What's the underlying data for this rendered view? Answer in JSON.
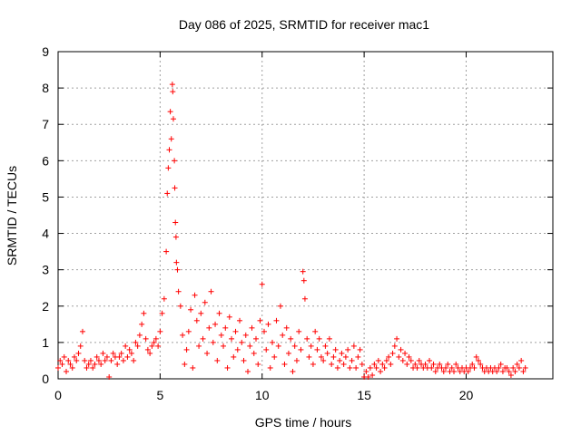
{
  "chart_data": {
    "type": "scatter",
    "title": "Day 086 of 2025, SRMTID for receiver mac1",
    "xlabel": "GPS time / hours",
    "ylabel": "SRMTID / TECUs",
    "xlim": [
      0,
      24.25
    ],
    "ylim": [
      0,
      9
    ],
    "xticks": [
      0,
      5,
      10,
      15,
      20
    ],
    "yticks": [
      0,
      1,
      2,
      3,
      4,
      5,
      6,
      7,
      8,
      9
    ],
    "grid": true,
    "marker": "+",
    "color": "#ff0000",
    "series": [
      {
        "name": "SRMTID",
        "points": [
          [
            0.0,
            0.3
          ],
          [
            0.1,
            0.5
          ],
          [
            0.2,
            0.4
          ],
          [
            0.3,
            0.6
          ],
          [
            0.4,
            0.2
          ],
          [
            0.5,
            0.5
          ],
          [
            0.6,
            0.4
          ],
          [
            0.7,
            0.3
          ],
          [
            0.8,
            0.6
          ],
          [
            0.9,
            0.5
          ],
          [
            1.0,
            0.7
          ],
          [
            1.1,
            0.9
          ],
          [
            1.2,
            1.3
          ],
          [
            1.3,
            0.5
          ],
          [
            1.4,
            0.3
          ],
          [
            1.5,
            0.4
          ],
          [
            1.6,
            0.5
          ],
          [
            1.7,
            0.3
          ],
          [
            1.8,
            0.4
          ],
          [
            1.9,
            0.6
          ],
          [
            2.0,
            0.5
          ],
          [
            2.1,
            0.4
          ],
          [
            2.2,
            0.7
          ],
          [
            2.3,
            0.5
          ],
          [
            2.4,
            0.6
          ],
          [
            2.5,
            0.05
          ],
          [
            2.6,
            0.5
          ],
          [
            2.7,
            0.7
          ],
          [
            2.8,
            0.6
          ],
          [
            2.9,
            0.4
          ],
          [
            3.0,
            0.6
          ],
          [
            3.1,
            0.7
          ],
          [
            3.2,
            0.5
          ],
          [
            3.3,
            0.9
          ],
          [
            3.4,
            0.6
          ],
          [
            3.5,
            0.8
          ],
          [
            3.6,
            0.7
          ],
          [
            3.7,
            0.5
          ],
          [
            3.8,
            1.0
          ],
          [
            3.9,
            0.9
          ],
          [
            4.0,
            1.2
          ],
          [
            4.1,
            1.5
          ],
          [
            4.2,
            1.8
          ],
          [
            4.3,
            1.1
          ],
          [
            4.4,
            0.8
          ],
          [
            4.5,
            0.7
          ],
          [
            4.6,
            0.9
          ],
          [
            4.7,
            1.0
          ],
          [
            4.8,
            1.1
          ],
          [
            4.9,
            0.9
          ],
          [
            5.0,
            1.3
          ],
          [
            5.1,
            1.8
          ],
          [
            5.2,
            2.2
          ],
          [
            5.3,
            3.5
          ],
          [
            5.35,
            5.1
          ],
          [
            5.4,
            5.8
          ],
          [
            5.45,
            6.3
          ],
          [
            5.5,
            7.35
          ],
          [
            5.55,
            6.6
          ],
          [
            5.6,
            8.1
          ],
          [
            5.62,
            7.9
          ],
          [
            5.65,
            7.15
          ],
          [
            5.7,
            6.0
          ],
          [
            5.72,
            5.25
          ],
          [
            5.75,
            4.3
          ],
          [
            5.78,
            3.9
          ],
          [
            5.8,
            3.2
          ],
          [
            5.85,
            3.0
          ],
          [
            5.9,
            2.4
          ],
          [
            6.0,
            2.0
          ],
          [
            6.1,
            1.2
          ],
          [
            6.2,
            0.4
          ],
          [
            6.3,
            0.8
          ],
          [
            6.4,
            1.3
          ],
          [
            6.5,
            1.9
          ],
          [
            6.6,
            0.3
          ],
          [
            6.7,
            2.3
          ],
          [
            6.8,
            1.6
          ],
          [
            6.9,
            0.9
          ],
          [
            7.0,
            1.8
          ],
          [
            7.1,
            1.1
          ],
          [
            7.2,
            2.1
          ],
          [
            7.3,
            0.7
          ],
          [
            7.4,
            1.4
          ],
          [
            7.5,
            2.4
          ],
          [
            7.6,
            1.0
          ],
          [
            7.7,
            1.5
          ],
          [
            7.8,
            0.5
          ],
          [
            7.9,
            1.8
          ],
          [
            8.0,
            1.2
          ],
          [
            8.1,
            0.9
          ],
          [
            8.2,
            1.4
          ],
          [
            8.3,
            0.3
          ],
          [
            8.4,
            1.7
          ],
          [
            8.5,
            1.1
          ],
          [
            8.6,
            0.6
          ],
          [
            8.7,
            1.3
          ],
          [
            8.8,
            0.8
          ],
          [
            8.9,
            1.6
          ],
          [
            9.0,
            1.0
          ],
          [
            9.1,
            0.5
          ],
          [
            9.2,
            1.2
          ],
          [
            9.3,
            0.2
          ],
          [
            9.4,
            0.9
          ],
          [
            9.5,
            1.4
          ],
          [
            9.6,
            0.7
          ],
          [
            9.7,
            1.1
          ],
          [
            9.8,
            0.4
          ],
          [
            9.9,
            1.6
          ],
          [
            10.0,
            2.6
          ],
          [
            10.1,
            1.3
          ],
          [
            10.2,
            0.8
          ],
          [
            10.3,
            1.5
          ],
          [
            10.4,
            0.3
          ],
          [
            10.5,
            1.0
          ],
          [
            10.6,
            0.6
          ],
          [
            10.7,
            1.6
          ],
          [
            10.8,
            0.9
          ],
          [
            10.9,
            2.0
          ],
          [
            11.0,
            1.2
          ],
          [
            11.1,
            0.4
          ],
          [
            11.2,
            1.4
          ],
          [
            11.3,
            0.7
          ],
          [
            11.4,
            1.1
          ],
          [
            11.5,
            0.2
          ],
          [
            11.6,
            0.9
          ],
          [
            11.7,
            0.5
          ],
          [
            11.8,
            1.3
          ],
          [
            11.9,
            0.8
          ],
          [
            12.0,
            2.95
          ],
          [
            12.05,
            2.7
          ],
          [
            12.1,
            2.2
          ],
          [
            12.2,
            1.1
          ],
          [
            12.3,
            0.6
          ],
          [
            12.4,
            0.9
          ],
          [
            12.5,
            0.4
          ],
          [
            12.6,
            1.3
          ],
          [
            12.7,
            0.8
          ],
          [
            12.8,
            1.1
          ],
          [
            12.9,
            0.6
          ],
          [
            13.0,
            0.5
          ],
          [
            13.1,
            0.9
          ],
          [
            13.2,
            0.7
          ],
          [
            13.3,
            1.1
          ],
          [
            13.4,
            0.4
          ],
          [
            13.5,
            0.6
          ],
          [
            13.6,
            0.8
          ],
          [
            13.7,
            0.3
          ],
          [
            13.8,
            0.5
          ],
          [
            13.9,
            0.7
          ],
          [
            14.0,
            0.4
          ],
          [
            14.1,
            0.6
          ],
          [
            14.2,
            0.8
          ],
          [
            14.3,
            0.3
          ],
          [
            14.4,
            0.5
          ],
          [
            14.5,
            0.9
          ],
          [
            14.6,
            0.3
          ],
          [
            14.7,
            0.6
          ],
          [
            14.8,
            0.8
          ],
          [
            14.9,
            0.4
          ],
          [
            15.0,
            0.05
          ],
          [
            15.1,
            0.2
          ],
          [
            15.2,
            0.05
          ],
          [
            15.3,
            0.3
          ],
          [
            15.4,
            0.1
          ],
          [
            15.5,
            0.4
          ],
          [
            15.6,
            0.3
          ],
          [
            15.7,
            0.5
          ],
          [
            15.8,
            0.2
          ],
          [
            15.9,
            0.4
          ],
          [
            16.0,
            0.3
          ],
          [
            16.1,
            0.5
          ],
          [
            16.2,
            0.6
          ],
          [
            16.3,
            0.4
          ],
          [
            16.4,
            0.7
          ],
          [
            16.5,
            0.9
          ],
          [
            16.6,
            1.1
          ],
          [
            16.7,
            0.6
          ],
          [
            16.8,
            0.8
          ],
          [
            16.9,
            0.5
          ],
          [
            17.0,
            0.7
          ],
          [
            17.1,
            0.4
          ],
          [
            17.2,
            0.6
          ],
          [
            17.3,
            0.5
          ],
          [
            17.4,
            0.3
          ],
          [
            17.5,
            0.4
          ],
          [
            17.6,
            0.3
          ],
          [
            17.7,
            0.5
          ],
          [
            17.8,
            0.4
          ],
          [
            17.9,
            0.3
          ],
          [
            18.0,
            0.4
          ],
          [
            18.1,
            0.3
          ],
          [
            18.2,
            0.5
          ],
          [
            18.3,
            0.3
          ],
          [
            18.4,
            0.4
          ],
          [
            18.5,
            0.2
          ],
          [
            18.6,
            0.3
          ],
          [
            18.7,
            0.4
          ],
          [
            18.8,
            0.3
          ],
          [
            18.9,
            0.2
          ],
          [
            19.0,
            0.3
          ],
          [
            19.1,
            0.4
          ],
          [
            19.2,
            0.2
          ],
          [
            19.3,
            0.3
          ],
          [
            19.4,
            0.2
          ],
          [
            19.5,
            0.4
          ],
          [
            19.6,
            0.3
          ],
          [
            19.7,
            0.2
          ],
          [
            19.8,
            0.3
          ],
          [
            19.9,
            0.2
          ],
          [
            20.0,
            0.3
          ],
          [
            20.1,
            0.2
          ],
          [
            20.2,
            0.3
          ],
          [
            20.3,
            0.4
          ],
          [
            20.4,
            0.3
          ],
          [
            20.5,
            0.6
          ],
          [
            20.6,
            0.5
          ],
          [
            20.7,
            0.4
          ],
          [
            20.8,
            0.3
          ],
          [
            20.9,
            0.2
          ],
          [
            21.0,
            0.3
          ],
          [
            21.1,
            0.2
          ],
          [
            21.2,
            0.3
          ],
          [
            21.3,
            0.2
          ],
          [
            21.4,
            0.3
          ],
          [
            21.5,
            0.2
          ],
          [
            21.6,
            0.3
          ],
          [
            21.7,
            0.4
          ],
          [
            21.8,
            0.2
          ],
          [
            21.9,
            0.3
          ],
          [
            22.0,
            0.3
          ],
          [
            22.1,
            0.2
          ],
          [
            22.2,
            0.1
          ],
          [
            22.3,
            0.3
          ],
          [
            22.4,
            0.2
          ],
          [
            22.5,
            0.4
          ],
          [
            22.6,
            0.3
          ],
          [
            22.7,
            0.5
          ],
          [
            22.8,
            0.2
          ],
          [
            22.9,
            0.3
          ]
        ]
      }
    ]
  }
}
